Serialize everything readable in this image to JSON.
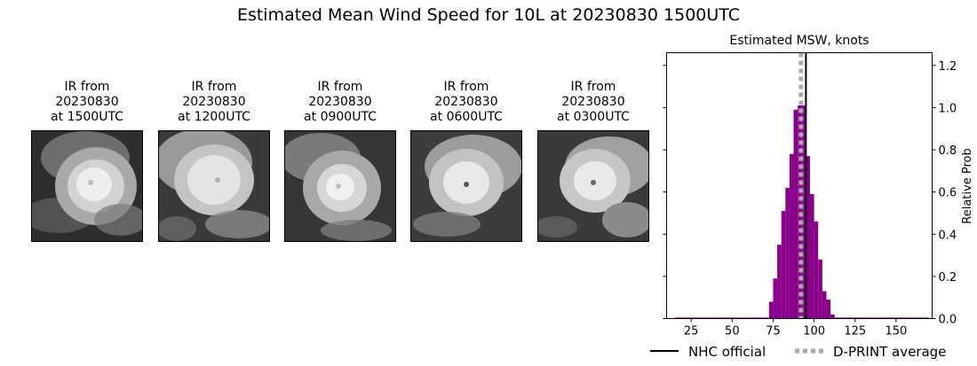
{
  "title": "Estimated Mean Wind Speed for 10L at 20230830 1500UTC",
  "panels": [
    {
      "line1": "IR from",
      "line2": "20230830",
      "line3": "at 1500UTC"
    },
    {
      "line1": "IR from",
      "line2": "20230830",
      "line3": "at 1200UTC"
    },
    {
      "line1": "IR from",
      "line2": "20230830",
      "line3": "at 0900UTC"
    },
    {
      "line1": "IR from",
      "line2": "20230830",
      "line3": "at 0600UTC"
    },
    {
      "line1": "IR from",
      "line2": "20230830",
      "line3": "at 0300UTC"
    }
  ],
  "chart_data": {
    "type": "bar",
    "title": "Estimated MSW, knots",
    "xlabel": "",
    "ylabel": "Relative Prob",
    "xlim": [
      10,
      172
    ],
    "ylim": [
      0,
      1.26
    ],
    "xticks": [
      25,
      50,
      75,
      100,
      125,
      150
    ],
    "yticks": [
      0.0,
      0.2,
      0.4,
      0.6,
      0.8,
      1.0,
      1.2
    ],
    "bin_width": 2.5,
    "bars_x": [
      15,
      17.5,
      20,
      22.5,
      25,
      27.5,
      30,
      32.5,
      35,
      37.5,
      40,
      42.5,
      45,
      47.5,
      50,
      52.5,
      55,
      57.5,
      60,
      62.5,
      65,
      67.5,
      70,
      72.5,
      75,
      77.5,
      80,
      82.5,
      85,
      87.5,
      90,
      92.5,
      95,
      97.5,
      100,
      102.5,
      105,
      107.5,
      110,
      112.5,
      115,
      117.5,
      120,
      122.5,
      125,
      127.5,
      130,
      132.5,
      135,
      137.5,
      140,
      142.5,
      145,
      147.5,
      150,
      152.5,
      155,
      157.5,
      160,
      162.5,
      165,
      167.5
    ],
    "bars_y": [
      0.005,
      0.005,
      0.005,
      0.005,
      0.005,
      0.005,
      0.005,
      0.005,
      0.005,
      0.005,
      0.005,
      0.005,
      0.005,
      0.005,
      0.005,
      0.005,
      0.005,
      0.005,
      0.005,
      0.005,
      0.005,
      0.005,
      0.005,
      0.08,
      0.19,
      0.35,
      0.51,
      0.62,
      0.78,
      0.99,
      1.01,
      1.01,
      0.77,
      0.59,
      0.46,
      0.28,
      0.13,
      0.09,
      0.02,
      0.005,
      0.005,
      0.005,
      0.005,
      0.005,
      0.005,
      0.005,
      0.005,
      0.005,
      0.005,
      0.005,
      0.005,
      0.005,
      0.005,
      0.005,
      0.005,
      0.005,
      0.005,
      0.005,
      0.005,
      0.005,
      0.005,
      0.005
    ],
    "bar_color": "#8b008b",
    "nhc_official": 95,
    "dprint_average": 92,
    "legend": [
      {
        "label": "NHC official",
        "style": "solid",
        "color": "#000000"
      },
      {
        "label": "D-PRINT average",
        "style": "dotted",
        "color": "#aaaaaa"
      }
    ],
    "legend_position": "bottom"
  }
}
